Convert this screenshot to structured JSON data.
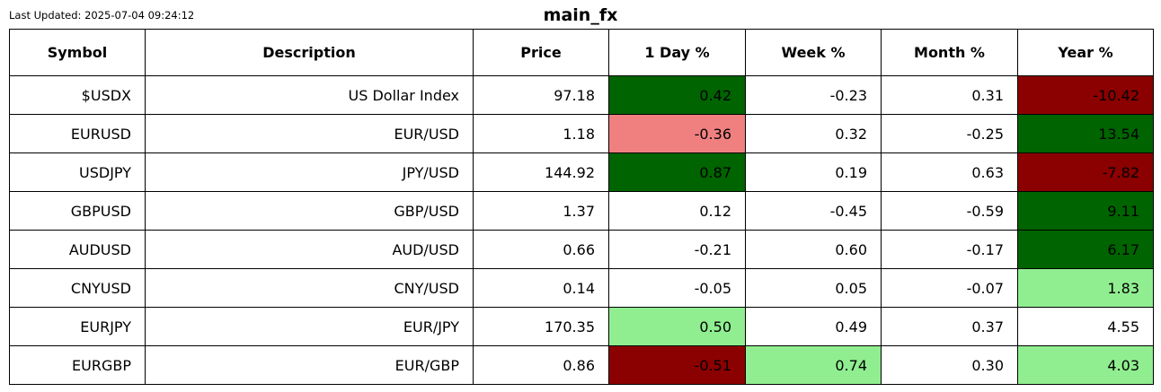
{
  "header": {
    "last_updated": "Last Updated: 2025-07-04 09:24:12",
    "title": "main_fx"
  },
  "colors": {
    "dark_green": "#006400",
    "light_green": "#90ee90",
    "light_red": "#f08080",
    "dark_red": "#8b0000",
    "neutral": "#ffffff"
  },
  "chart_data": {
    "type": "table",
    "title": "main_fx",
    "columns": [
      "Symbol",
      "Description",
      "Price",
      "1 Day %",
      "Week %",
      "Month %",
      "Year %"
    ],
    "rows": [
      {
        "cells": [
          "$USDX",
          "US Dollar Index",
          "97.18",
          "0.42",
          "-0.23",
          "0.31",
          "-10.42"
        ],
        "fills": [
          "neutral",
          "neutral",
          "neutral",
          "dark_green",
          "neutral",
          "neutral",
          "dark_red"
        ]
      },
      {
        "cells": [
          "EURUSD",
          "EUR/USD",
          "1.18",
          "-0.36",
          "0.32",
          "-0.25",
          "13.54"
        ],
        "fills": [
          "neutral",
          "neutral",
          "neutral",
          "light_red",
          "neutral",
          "neutral",
          "dark_green"
        ]
      },
      {
        "cells": [
          "USDJPY",
          "JPY/USD",
          "144.92",
          "0.87",
          "0.19",
          "0.63",
          "-7.82"
        ],
        "fills": [
          "neutral",
          "neutral",
          "neutral",
          "dark_green",
          "neutral",
          "neutral",
          "dark_red"
        ]
      },
      {
        "cells": [
          "GBPUSD",
          "GBP/USD",
          "1.37",
          "0.12",
          "-0.45",
          "-0.59",
          "9.11"
        ],
        "fills": [
          "neutral",
          "neutral",
          "neutral",
          "neutral",
          "neutral",
          "neutral",
          "dark_green"
        ]
      },
      {
        "cells": [
          "AUDUSD",
          "AUD/USD",
          "0.66",
          "-0.21",
          "0.60",
          "-0.17",
          "6.17"
        ],
        "fills": [
          "neutral",
          "neutral",
          "neutral",
          "neutral",
          "neutral",
          "neutral",
          "dark_green"
        ]
      },
      {
        "cells": [
          "CNYUSD",
          "CNY/USD",
          "0.14",
          "-0.05",
          "0.05",
          "-0.07",
          "1.83"
        ],
        "fills": [
          "neutral",
          "neutral",
          "neutral",
          "neutral",
          "neutral",
          "neutral",
          "light_green"
        ]
      },
      {
        "cells": [
          "EURJPY",
          "EUR/JPY",
          "170.35",
          "0.50",
          "0.49",
          "0.37",
          "4.55"
        ],
        "fills": [
          "neutral",
          "neutral",
          "neutral",
          "light_green",
          "neutral",
          "neutral",
          "neutral"
        ]
      },
      {
        "cells": [
          "EURGBP",
          "EUR/GBP",
          "0.86",
          "-0.51",
          "0.74",
          "0.30",
          "4.03"
        ],
        "fills": [
          "neutral",
          "neutral",
          "neutral",
          "dark_red",
          "light_green",
          "neutral",
          "light_green"
        ]
      }
    ]
  }
}
